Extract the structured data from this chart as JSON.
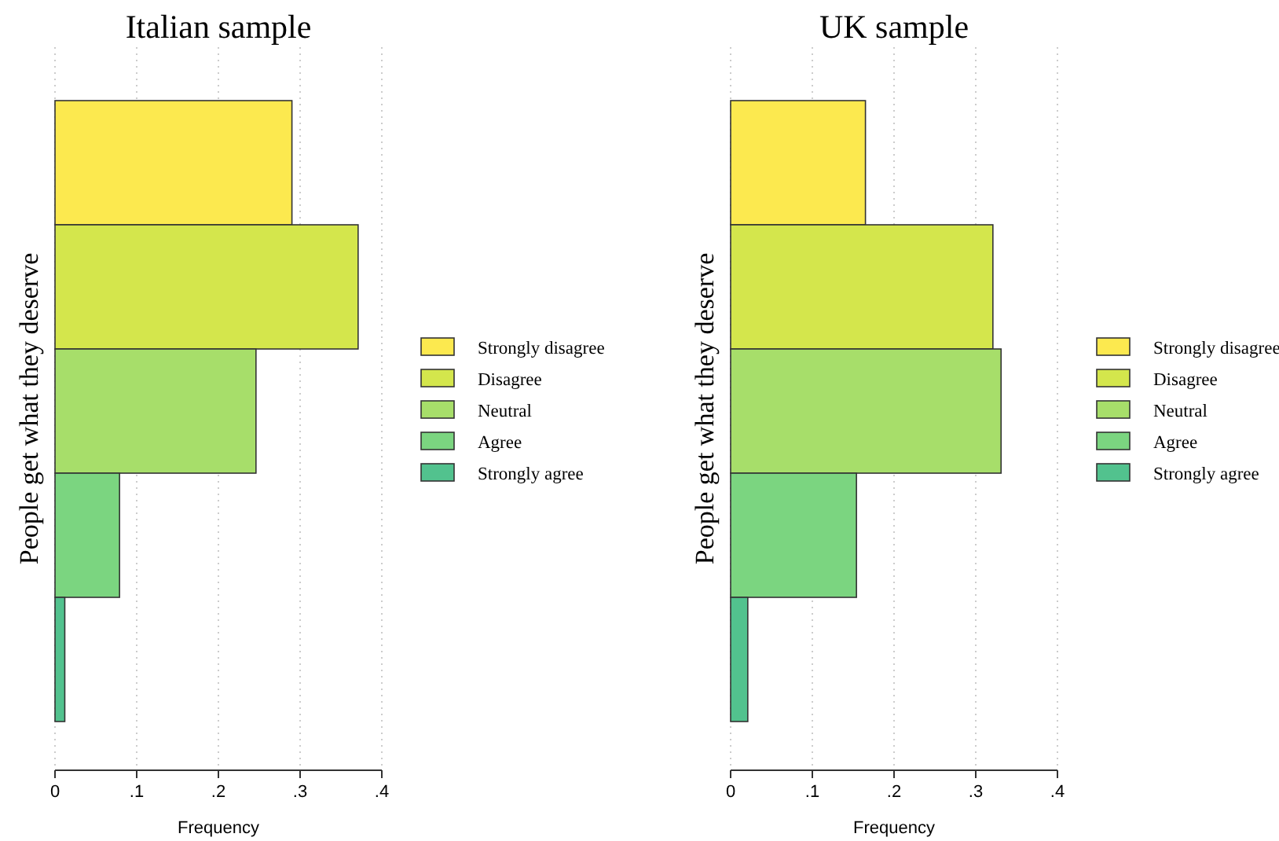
{
  "chart_data": [
    {
      "type": "bar",
      "orientation": "horizontal",
      "title": "Italian sample",
      "xlabel": "Frequency",
      "ylabel": "People get what they deserve",
      "categories": [
        null,
        null,
        null,
        null,
        null
      ],
      "xlim": [
        0,
        0.4
      ],
      "xticks": [
        0,
        {
          "value": 0.1,
          "label": ".1"
        },
        {
          "value": 0.2,
          "label": ".2"
        },
        {
          "value": 0.3,
          "label": ".3"
        },
        {
          "value": 0.4,
          "label": ".4"
        }
      ],
      "grid": "x",
      "legend": "right",
      "series": [
        {
          "name": "Strongly disagree",
          "color": "#fce94f",
          "values": [
            0.29,
            null,
            null,
            null,
            null
          ]
        },
        {
          "name": "Disagree",
          "color": "#d4e64c",
          "values": [
            null,
            0.371,
            null,
            null,
            null
          ]
        },
        {
          "name": "Neutral",
          "color": "#a7de6a",
          "values": [
            null,
            null,
            0.246,
            null,
            null
          ]
        },
        {
          "name": "Agree",
          "color": "#7bd580",
          "values": [
            null,
            null,
            null,
            0.079,
            null
          ]
        },
        {
          "name": "Strongly agree",
          "color": "#52c28e",
          "values": [
            null,
            null,
            null,
            null,
            0.012
          ]
        }
      ]
    },
    {
      "type": "bar",
      "orientation": "horizontal",
      "title": "UK sample",
      "xlabel": "Frequency",
      "ylabel": "People get what they deserve",
      "categories": [
        null,
        null,
        null,
        null,
        null
      ],
      "xlim": [
        0,
        0.4
      ],
      "xticks": [
        0,
        {
          "value": 0.1,
          "label": ".1"
        },
        {
          "value": 0.2,
          "label": ".2"
        },
        {
          "value": 0.3,
          "label": ".3"
        },
        {
          "value": 0.4,
          "label": ".4"
        }
      ],
      "grid": "x",
      "legend": "right",
      "series": [
        {
          "name": "Strongly disagree",
          "color": "#fce94f",
          "values": [
            0.165,
            null,
            null,
            null,
            null
          ]
        },
        {
          "name": "Disagree",
          "color": "#d4e64c",
          "values": [
            null,
            0.321,
            null,
            null,
            null
          ]
        },
        {
          "name": "Neutral",
          "color": "#a7de6a",
          "values": [
            null,
            null,
            0.331,
            null,
            null
          ]
        },
        {
          "name": "Agree",
          "color": "#7bd580",
          "values": [
            null,
            null,
            null,
            0.154,
            null
          ]
        },
        {
          "name": "Strongly agree",
          "color": "#52c28e",
          "values": [
            null,
            null,
            null,
            null,
            0.021
          ]
        }
      ]
    }
  ]
}
